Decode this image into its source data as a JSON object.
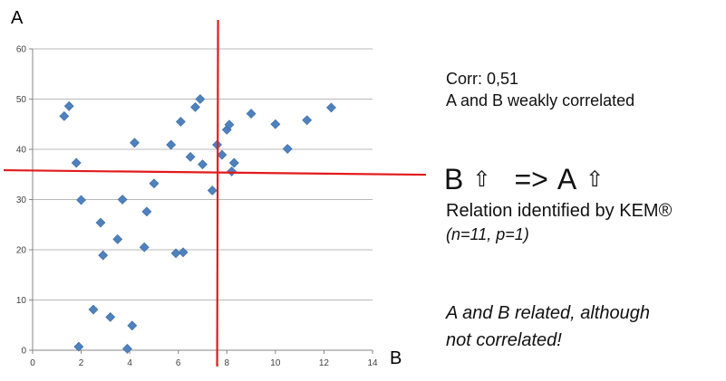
{
  "chart_data": {
    "type": "scatter",
    "title": "",
    "xlabel": "B",
    "ylabel": "A",
    "xlim": [
      0,
      14
    ],
    "ylim": [
      0,
      60
    ],
    "x_ticks": [
      "0",
      "2",
      "4",
      "6",
      "8",
      "10",
      "12",
      "14"
    ],
    "y_ticks": [
      "0",
      "10",
      "20",
      "30",
      "40",
      "50",
      "60"
    ],
    "grid": "horizontal",
    "marker": "diamond",
    "marker_color": "#4f81bd",
    "series": [
      {
        "points": [
          [
            1.3,
            46.6
          ],
          [
            1.5,
            48.6
          ],
          [
            1.8,
            37.3
          ],
          [
            2.0,
            29.9
          ],
          [
            1.9,
            0.7
          ],
          [
            2.5,
            8.1
          ],
          [
            2.8,
            25.4
          ],
          [
            2.9,
            18.9
          ],
          [
            3.2,
            6.6
          ],
          [
            3.5,
            22.1
          ],
          [
            3.7,
            30.0
          ],
          [
            3.9,
            0.3
          ],
          [
            4.1,
            4.9
          ],
          [
            4.2,
            41.3
          ],
          [
            4.6,
            20.5
          ],
          [
            4.7,
            27.6
          ],
          [
            5.0,
            33.2
          ],
          [
            5.7,
            40.9
          ],
          [
            5.9,
            19.3
          ],
          [
            6.1,
            45.5
          ],
          [
            6.2,
            19.5
          ],
          [
            6.5,
            38.5
          ],
          [
            6.7,
            48.4
          ],
          [
            6.9,
            50.0
          ],
          [
            7.0,
            37.0
          ],
          [
            7.4,
            31.8
          ],
          [
            7.6,
            40.9
          ],
          [
            7.8,
            38.9
          ],
          [
            8.0,
            43.9
          ],
          [
            8.1,
            44.9
          ],
          [
            8.2,
            35.6
          ],
          [
            8.3,
            37.3
          ],
          [
            9.0,
            47.1
          ],
          [
            10.0,
            45.0
          ],
          [
            10.5,
            40.1
          ],
          [
            11.3,
            45.8
          ],
          [
            12.3,
            48.3
          ]
        ]
      }
    ],
    "reference_lines": [
      {
        "orientation": "vertical",
        "value": 7.6,
        "color": "#e31a1c"
      },
      {
        "orientation": "horizontal",
        "value": 35.3,
        "color": "#e31a1c"
      }
    ]
  },
  "annotations": {
    "corr": "Corr: 0,51",
    "corr_desc": "A and B weakly correlated",
    "rel_b": "B",
    "rel_arrow": "⇧",
    "rel_implies": "=>",
    "rel_a": "A",
    "rel_identified": "Relation identified by KEM®",
    "rel_params": "(n=11, p=1)",
    "conclusion_line1": "A and B related, although",
    "conclusion_line2": "not correlated!"
  }
}
